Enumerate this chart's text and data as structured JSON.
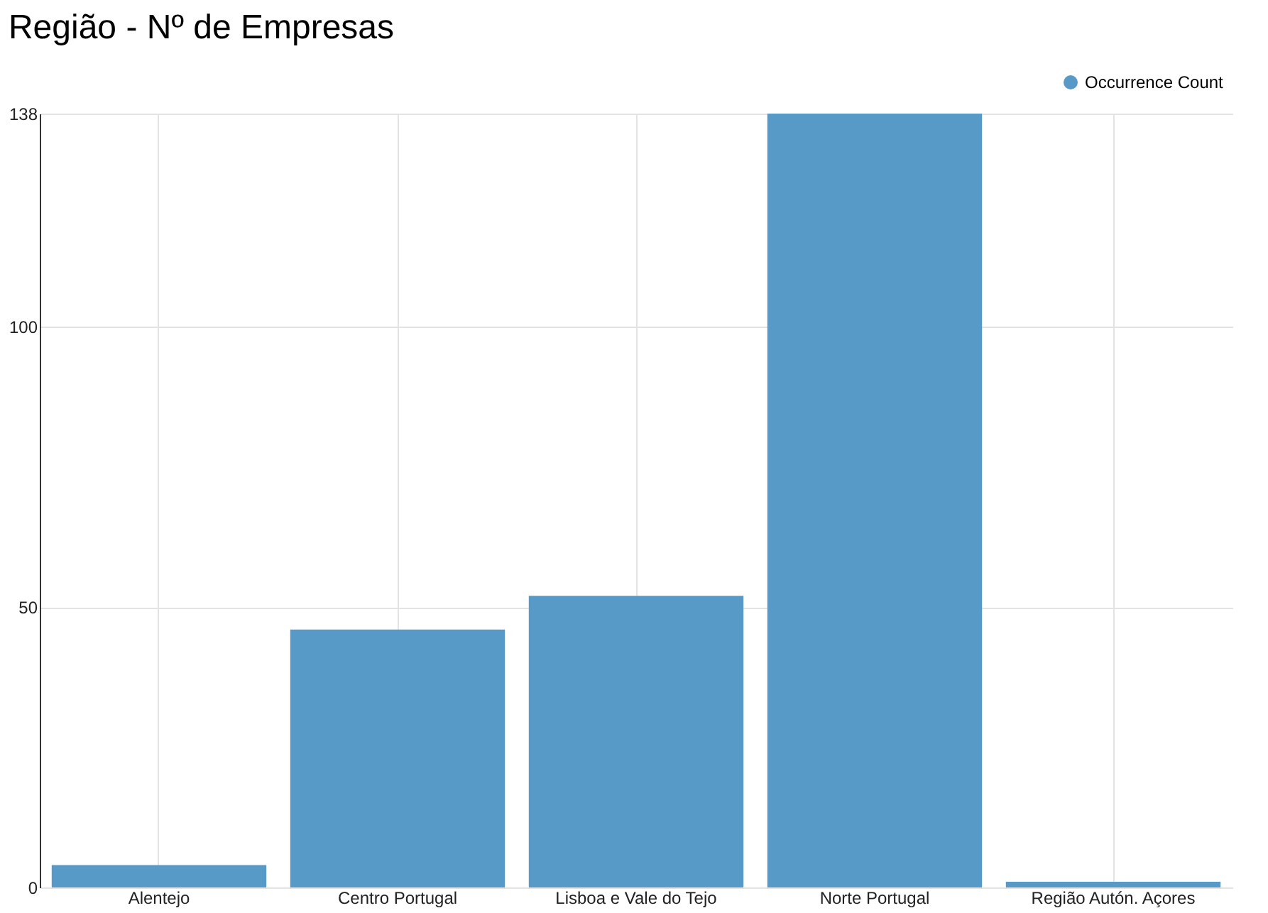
{
  "chart_data": {
    "type": "bar",
    "title": "Região - Nº de Empresas",
    "categories": [
      "Alentejo",
      "Centro Portugal",
      "Lisboa e Vale do Tejo",
      "Norte Portugal",
      "Região Autón. Açores"
    ],
    "series": [
      {
        "name": "Occurrence Count",
        "color": "#5799c7",
        "values": [
          4,
          46,
          52,
          138,
          1
        ]
      }
    ],
    "ylim": [
      0,
      138
    ],
    "yticks": [
      0,
      50,
      100,
      138
    ],
    "grid": true,
    "legend": "top right"
  }
}
